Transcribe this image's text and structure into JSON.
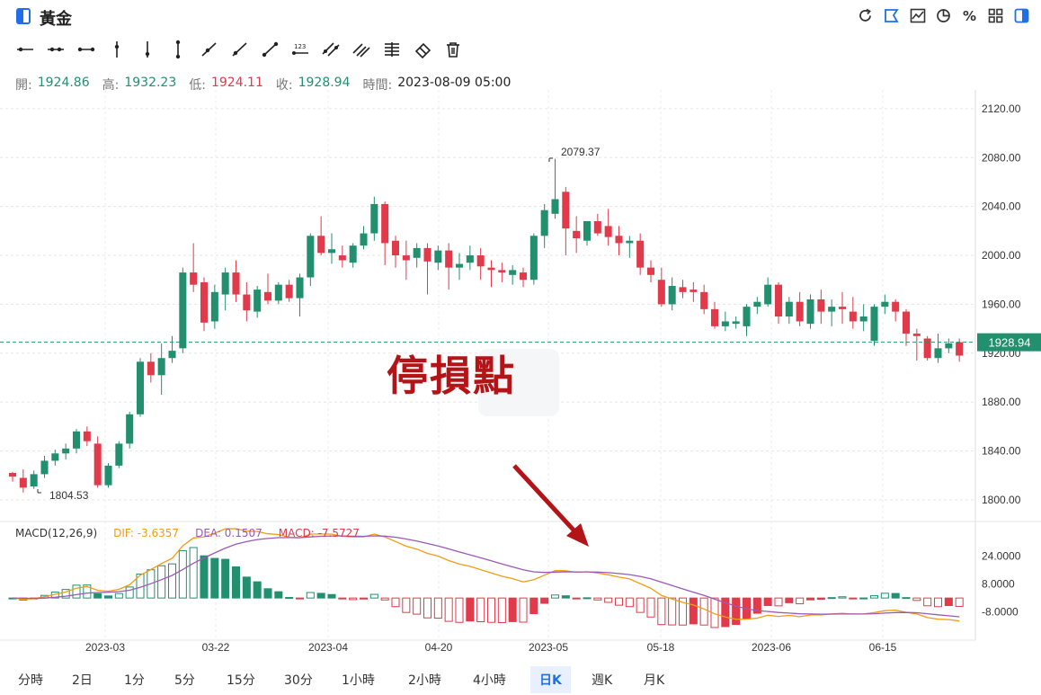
{
  "header": {
    "title": "黃金",
    "right_tools": [
      "refresh-icon",
      "annotate-icon",
      "compare-icon",
      "pie-icon",
      "percent-icon",
      "grid-icon",
      "panel-icon"
    ],
    "percent_label": "%"
  },
  "drawing_tools": [
    "horizontal-ray-icon",
    "horizontal-segment-icon",
    "horizontal-line-icon",
    "vertical-ray-icon",
    "vertical-segment-icon",
    "vertical-line-icon",
    "trend-ray-icon",
    "trend-segment-icon",
    "trend-line-icon",
    "price-label-icon",
    "parallel-channel-icon",
    "parallel-lines-icon",
    "fibonacci-icon",
    "eraser-icon",
    "trash-icon"
  ],
  "ohlc": {
    "open_label": "開:",
    "open": "1924.86",
    "high_label": "高:",
    "high": "1932.23",
    "low_label": "低:",
    "low": "1924.11",
    "close_label": "收:",
    "close": "1928.94",
    "time_label": "時間:",
    "time": "2023-08-09 05:00"
  },
  "annotation": {
    "stamp_text": "停損點",
    "stamp_color": "#b31418"
  },
  "chart_data": {
    "type": "candlestick",
    "price_ticks": [
      "2120.00",
      "2080.00",
      "2040.00",
      "2000.00",
      "1960.00",
      "1920.00",
      "1880.00",
      "1840.00",
      "1800.00"
    ],
    "current_price": "1928.94",
    "max_marker": "2079.37",
    "min_marker": "1804.53",
    "x_labels": [
      "2023-03",
      "03-22",
      "2023-04",
      "04-20",
      "2023-05",
      "05-18",
      "2023-06",
      "06-15"
    ],
    "colors": {
      "up": "#22906f",
      "down": "#e03a4b",
      "dif": "#f39c12",
      "dea": "#9b59b6"
    },
    "candles": [
      [
        1822,
        1823,
        1815,
        1819
      ],
      [
        1818,
        1825,
        1806,
        1810
      ],
      [
        1811,
        1824,
        1809,
        1821
      ],
      [
        1821,
        1836,
        1818,
        1832
      ],
      [
        1832,
        1841,
        1828,
        1838
      ],
      [
        1838,
        1846,
        1833,
        1842
      ],
      [
        1842,
        1858,
        1838,
        1856
      ],
      [
        1856,
        1860,
        1844,
        1848
      ],
      [
        1846,
        1852,
        1810,
        1812
      ],
      [
        1812,
        1830,
        1810,
        1828
      ],
      [
        1828,
        1848,
        1826,
        1846
      ],
      [
        1846,
        1872,
        1842,
        1870
      ],
      [
        1870,
        1916,
        1868,
        1913
      ],
      [
        1913,
        1920,
        1896,
        1902
      ],
      [
        1902,
        1928,
        1886,
        1916
      ],
      [
        1916,
        1934,
        1912,
        1922
      ],
      [
        1924,
        1990,
        1920,
        1986
      ],
      [
        1986,
        2010,
        1970,
        1976
      ],
      [
        1978,
        1982,
        1938,
        1945
      ],
      [
        1946,
        1976,
        1940,
        1970
      ],
      [
        1968,
        1990,
        1955,
        1986
      ],
      [
        1986,
        1996,
        1962,
        1968
      ],
      [
        1968,
        1978,
        1946,
        1955
      ],
      [
        1954,
        1975,
        1949,
        1972
      ],
      [
        1970,
        1985,
        1960,
        1963
      ],
      [
        1963,
        1978,
        1960,
        1976
      ],
      [
        1976,
        1980,
        1962,
        1965
      ],
      [
        1965,
        1985,
        1950,
        1982
      ],
      [
        1982,
        2018,
        1975,
        2016
      ],
      [
        2016,
        2032,
        2000,
        2002
      ],
      [
        2002,
        2018,
        1993,
        2005
      ],
      [
        2000,
        2008,
        1990,
        1996
      ],
      [
        1994,
        2010,
        1990,
        2008
      ],
      [
        2008,
        2024,
        2005,
        2018
      ],
      [
        2018,
        2048,
        2012,
        2042
      ],
      [
        2042,
        2044,
        1992,
        2010
      ],
      [
        2012,
        2016,
        1990,
        2000
      ],
      [
        2000,
        2012,
        1980,
        1996
      ],
      [
        1998,
        2010,
        1990,
        2006
      ],
      [
        2006,
        2010,
        1968,
        1995
      ],
      [
        1994,
        2008,
        1988,
        2004
      ],
      [
        2004,
        2010,
        1972,
        1990
      ],
      [
        1990,
        2002,
        1980,
        1993
      ],
      [
        1994,
        2008,
        1988,
        2000
      ],
      [
        2000,
        2006,
        1980,
        1991
      ],
      [
        1990,
        1996,
        1974,
        1988
      ],
      [
        1988,
        1994,
        1978,
        1986
      ],
      [
        1984,
        1992,
        1976,
        1988
      ],
      [
        1986,
        1990,
        1974,
        1980
      ],
      [
        1980,
        2018,
        1976,
        2016
      ],
      [
        2016,
        2042,
        2006,
        2037
      ],
      [
        2034,
        2079,
        2030,
        2046
      ],
      [
        2052,
        2056,
        2000,
        2022
      ],
      [
        2020,
        2032,
        2002,
        2014
      ],
      [
        2012,
        2028,
        2008,
        2028
      ],
      [
        2028,
        2034,
        2016,
        2018
      ],
      [
        2024,
        2038,
        2008,
        2015
      ],
      [
        2016,
        2024,
        2000,
        2010
      ],
      [
        2010,
        2016,
        1998,
        2012
      ],
      [
        2012,
        2018,
        1984,
        1990
      ],
      [
        1990,
        1996,
        1978,
        1984
      ],
      [
        1980,
        1990,
        1958,
        1960
      ],
      [
        1960,
        1982,
        1955,
        1975
      ],
      [
        1974,
        1980,
        1965,
        1970
      ],
      [
        1972,
        1978,
        1962,
        1970
      ],
      [
        1970,
        1976,
        1952,
        1956
      ],
      [
        1956,
        1962,
        1940,
        1942
      ],
      [
        1942,
        1954,
        1938,
        1946
      ],
      [
        1944,
        1950,
        1940,
        1946
      ],
      [
        1942,
        1960,
        1934,
        1958
      ],
      [
        1958,
        1966,
        1952,
        1962
      ],
      [
        1960,
        1982,
        1958,
        1976
      ],
      [
        1976,
        1978,
        1944,
        1950
      ],
      [
        1950,
        1966,
        1944,
        1962
      ],
      [
        1962,
        1970,
        1942,
        1946
      ],
      [
        1944,
        1968,
        1940,
        1964
      ],
      [
        1964,
        1972,
        1944,
        1954
      ],
      [
        1954,
        1964,
        1942,
        1958
      ],
      [
        1958,
        1970,
        1944,
        1956
      ],
      [
        1954,
        1966,
        1940,
        1946
      ],
      [
        1946,
        1960,
        1938,
        1950
      ],
      [
        1930,
        1960,
        1926,
        1958
      ],
      [
        1958,
        1968,
        1952,
        1962
      ],
      [
        1962,
        1964,
        1946,
        1954
      ],
      [
        1954,
        1956,
        1926,
        1936
      ],
      [
        1936,
        1940,
        1914,
        1934
      ],
      [
        1932,
        1934,
        1914,
        1916
      ],
      [
        1916,
        1936,
        1912,
        1924
      ],
      [
        1924,
        1932,
        1920,
        1928
      ],
      [
        1929,
        1932,
        1913,
        1918
      ]
    ],
    "macd": {
      "legend_title": "MACD(12,26,9)",
      "dif_label": "DIF: -3.6357",
      "dea_label": "DEA: 0.1507",
      "macd_label": "MACD: -7.5727",
      "ticks": [
        "24.0000",
        "8.0000",
        "-8.0000"
      ]
    }
  },
  "timeframes": [
    "分時",
    "2日",
    "1分",
    "5分",
    "15分",
    "30分",
    "1小時",
    "2小時",
    "4小時",
    "日K",
    "週K",
    "月K"
  ],
  "active_timeframe": "日K"
}
